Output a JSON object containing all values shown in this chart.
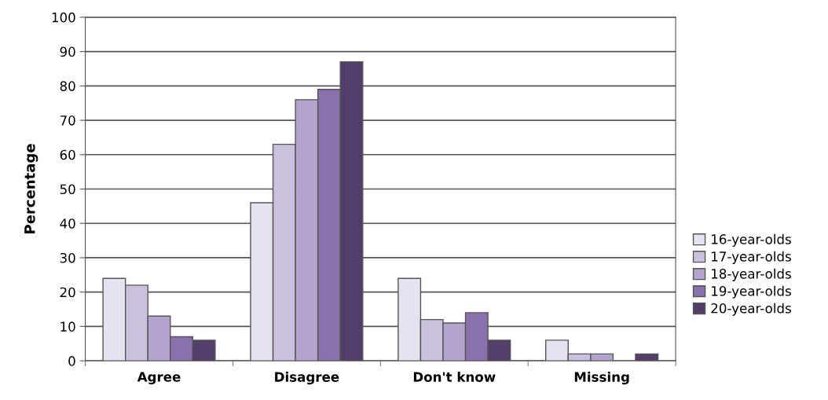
{
  "chart_data": {
    "type": "bar",
    "ylabel": "Percentage",
    "categories": [
      "Agree",
      "Disagree",
      "Don't know",
      "Missing"
    ],
    "series": [
      {
        "name": "16-year-olds",
        "color": "#e6e2f0",
        "values": [
          24,
          46,
          24,
          6
        ]
      },
      {
        "name": "17-year-olds",
        "color": "#cbc0de",
        "values": [
          22,
          63,
          12,
          2
        ]
      },
      {
        "name": "18-year-olds",
        "color": "#b4a4cd",
        "values": [
          13,
          76,
          11,
          2
        ]
      },
      {
        "name": "19-year-olds",
        "color": "#8a70ad",
        "values": [
          7,
          79,
          14,
          0
        ]
      },
      {
        "name": "20-year-olds",
        "color": "#533d69",
        "values": [
          6,
          87,
          6,
          2
        ]
      }
    ],
    "ylim": [
      0,
      100
    ],
    "yticks": [
      0,
      10,
      20,
      30,
      40,
      50,
      60,
      70,
      80,
      90,
      100
    ],
    "grid": "y",
    "legend": "right"
  }
}
